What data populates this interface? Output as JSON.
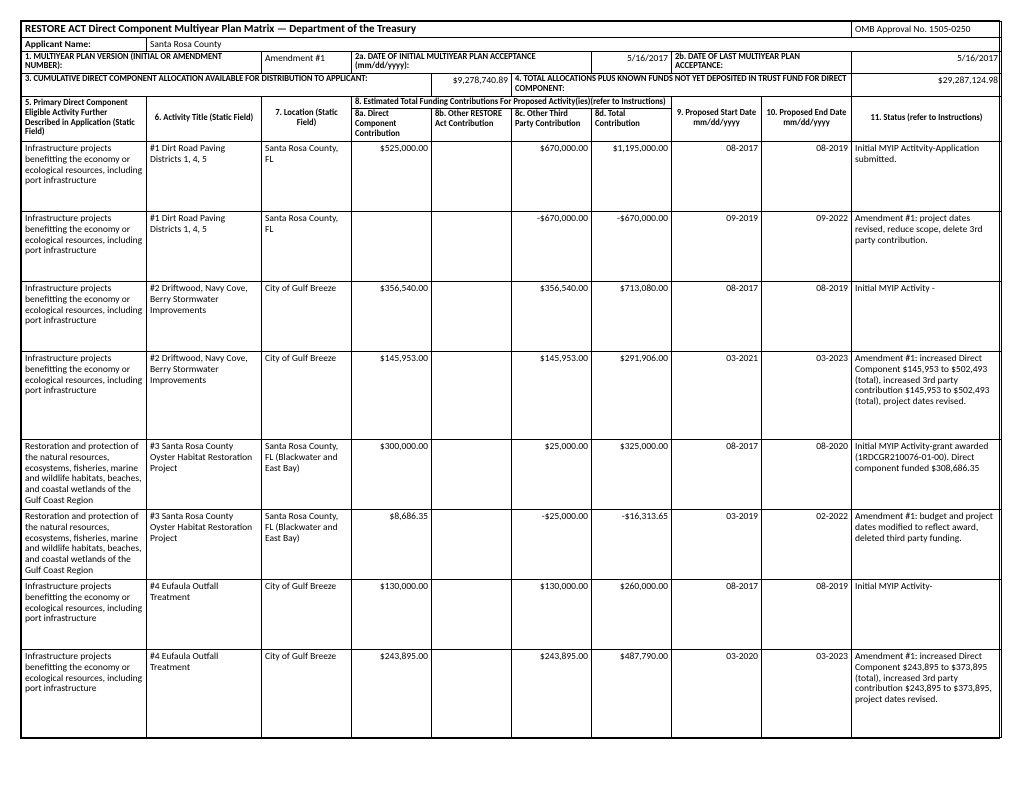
{
  "header": {
    "title": "RESTORE ACT Direct Component Multiyear Plan Matrix  —  Department of the Treasury",
    "omb": "OMB Approval No. 1505-0250",
    "applicant_label": "Applicant Name:",
    "applicant_value": "Santa Rosa County",
    "row1a_label": "1. MULTIYEAR PLAN VERSION (INITIAL OR AMENDMENT NUMBER):",
    "row1a_value": "Amendment #1",
    "row2a_label": "2a.  DATE OF INITIAL MULTIYEAR PLAN ACCEPTANCE (mm/dd/yyyy):",
    "row2a_value": "5/16/2017",
    "row2b_label": "2b.  DATE OF LAST MULTIYEAR PLAN ACCEPTANCE:",
    "row2b_value": "5/16/2017",
    "row3_label": "3. CUMULATIVE DIRECT COMPONENT ALLOCATION AVAILABLE FOR DISTRIBUTION TO APPLICANT:",
    "row3_value": "$9,278,740.89",
    "row4_label": "4.  TOTAL ALLOCATIONS PLUS KNOWN FUNDS NOT YET DEPOSITED IN TRUST FUND FOR DIRECT COMPONENT:",
    "row4_value": "$29,287,124.98"
  },
  "cols": {
    "c5": "5. Primary Direct Component Eligible Activity Further Described in Application (Static Field)",
    "c6": "6. Activity Title  (Static Field)",
    "c7": "7. Location  (Static Field)",
    "c8": "8. Estimated Total Funding Contributions For Proposed Activity(ies)(refer to Instructions)",
    "c8a": "8a. Direct Component Contribution",
    "c8b": "8b. Other RESTORE Act Contribution",
    "c8c": "8c. Other Third Party Contribution",
    "c8d": "8d. Total Contribution",
    "c9": "9. Proposed Start Date mm/dd/yyyy",
    "c10": "10. Proposed End Date mm/dd/yyyy",
    "c11": "11. Status (refer to Instructions)"
  },
  "rows": [
    {
      "activity": "Infrastructure projects benefitting the economy or ecological resources, including port infrastructure",
      "title": "#1 Dirt Road Paving Districts 1, 4, 5",
      "location": "Santa Rosa County, FL",
      "a": "$525,000.00",
      "b": "",
      "c": "$670,000.00",
      "d": "$1,195,000.00",
      "start": "08-2017",
      "end": "08-2019",
      "status": "Initial MYIP Actitvity-Application submitted."
    },
    {
      "activity": "Infrastructure projects benefitting the economy or ecological resources, including port infrastructure",
      "title": "#1 Dirt Road Paving Districts 1, 4, 5",
      "location": "Santa Rosa County, FL",
      "a": "",
      "b": "",
      "c": "-$670,000.00",
      "d": "-$670,000.00",
      "start": "09-2019",
      "end": "09-2022",
      "status": "Amendment #1: project dates revised, reduce scope, delete 3rd party contribution."
    },
    {
      "activity": "Infrastructure projects benefitting the economy or ecological resources, including port infrastructure",
      "title": "#2 Driftwood, Navy Cove, Berry Stormwater Improvements",
      "location": "City of Gulf Breeze",
      "a": "$356,540.00",
      "b": "",
      "c": "$356,540.00",
      "d": "$713,080.00",
      "start": "08-2017",
      "end": "08-2019",
      "status": "Initial MYIP Activity -"
    },
    {
      "activity": "Infrastructure projects benefitting the economy or ecological resources, including port infrastructure",
      "title": "#2 Driftwood, Navy Cove, Berry Stormwater Improvements",
      "location": "City of Gulf Breeze",
      "a": "$145,953.00",
      "b": "",
      "c": "$145,953.00",
      "d": "$291,906.00",
      "start": "03-2021",
      "end": "03-2023",
      "status": "Amendment #1: increased Direct Component $145,953 to $502,493 (total), increased 3rd party contribution $145,953 to $502,493 (total), project dates revised."
    },
    {
      "activity": "Restoration and protection of the natural resources, ecosystems, fisheries, marine and wildlife habitats, beaches, and coastal wetlands of the Gulf Coast Region",
      "title": "#3 Santa Rosa County Oyster Habitat Restoration Project",
      "location": "Santa Rosa County, FL (Blackwater and East Bay)",
      "a": "$300,000.00",
      "b": "",
      "c": "$25,000.00",
      "d": "$325,000.00",
      "start": "08-2017",
      "end": "08-2020",
      "status": "Initial MYIP Activity-grant awarded (1RDCGR210076-01-00). Direct component funded $308,686.35"
    },
    {
      "activity": "Restoration and protection of the natural resources, ecosystems, fisheries, marine and wildlife habitats, beaches, and coastal wetlands of the Gulf Coast Region",
      "title": "#3 Santa Rosa County Oyster Habitat Restoration Project",
      "location": "Santa Rosa County, FL (Blackwater and East Bay)",
      "a": "$8,686.35",
      "b": "",
      "c": "-$25,000.00",
      "d": "-$16,313.65",
      "start": "03-2019",
      "end": "02-2022",
      "status": "Amendment #1: budget and project dates modified to reflect award, deleted third party funding."
    },
    {
      "activity": "Infrastructure projects benefitting the economy or ecological resources, including port infrastructure",
      "title": "#4 Eufaula Outfall Treatment",
      "location": "City of Gulf Breeze",
      "a": "$130,000.00",
      "b": "",
      "c": "$130,000.00",
      "d": "$260,000.00",
      "start": "08-2017",
      "end": "08-2019",
      "status": "Initial MYIP Activity-"
    },
    {
      "activity": "Infrastructure projects benefitting the economy or ecological resources, including port infrastructure",
      "title": "#4 Eufaula Outfall Treatment",
      "location": "City of Gulf Breeze",
      "a": "$243,895.00",
      "b": "",
      "c": "$243,895.00",
      "d": "$487,790.00",
      "start": "03-2020",
      "end": "03-2023",
      "status": "Amendment #1: increased Direct Component $243,895 to $373,895 (total), increased 3rd party contribution $243,895 to $373,895, project dates revised."
    }
  ]
}
